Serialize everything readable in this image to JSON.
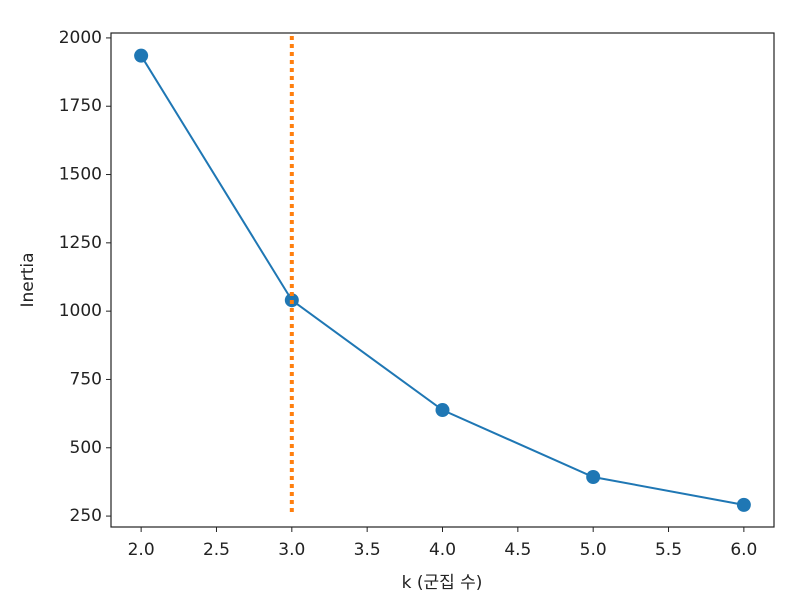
{
  "chart_data": {
    "type": "line",
    "xlabel": "k (군집 수)",
    "ylabel": "Inertia",
    "x": [
      2,
      3,
      4,
      5,
      6
    ],
    "values": [
      1935,
      1040,
      638,
      393,
      291
    ],
    "color": "#1f77b4",
    "vline": {
      "x": 3,
      "ymin": 265,
      "ymax": 2010,
      "color": "#ff7f0e"
    },
    "xlim": [
      1.8,
      6.2
    ],
    "xticks": [
      {
        "value": 2,
        "label": "2.0"
      },
      {
        "value": 2.5,
        "label": "2.5"
      },
      {
        "value": 3,
        "label": "3.0"
      },
      {
        "value": 3.5,
        "label": "3.5"
      },
      {
        "value": 4,
        "label": "4.0"
      },
      {
        "value": 4.5,
        "label": "4.5"
      },
      {
        "value": 5,
        "label": "5.0"
      },
      {
        "value": 5.5,
        "label": "5.5"
      },
      {
        "value": 6,
        "label": "6.0"
      }
    ],
    "ylim": [
      210,
      2018
    ],
    "yticks": [
      250,
      500,
      750,
      1000,
      1250,
      1500,
      1750,
      2000
    ],
    "grid": false
  }
}
